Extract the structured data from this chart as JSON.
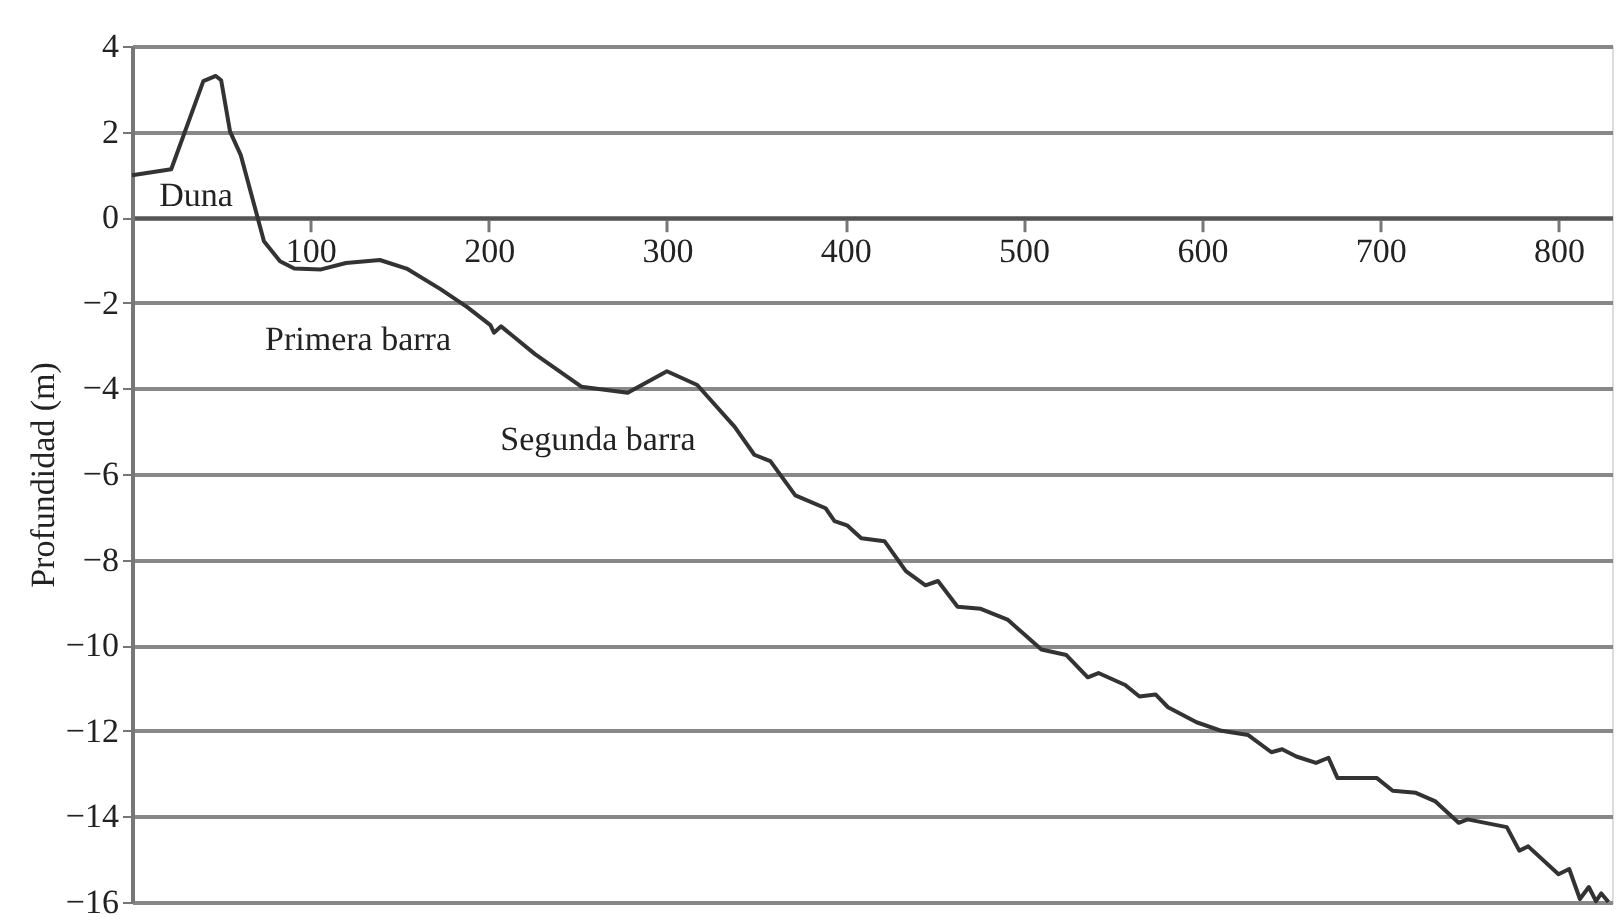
{
  "chart_data": {
    "type": "line",
    "ylabel": "Profundidad (m)",
    "x": [
      0,
      22,
      40,
      47,
      50,
      55,
      61,
      74,
      83,
      91,
      106,
      120,
      139,
      154,
      173,
      188,
      201,
      203,
      207,
      226,
      252,
      278,
      300,
      317,
      338,
      349,
      358,
      372,
      389,
      394,
      401,
      409,
      422,
      434,
      445,
      452,
      463,
      476,
      491,
      501,
      510,
      524,
      536,
      542,
      557,
      565,
      574,
      581,
      597,
      611,
      626,
      639,
      645,
      653,
      664,
      671,
      676,
      698,
      707,
      720,
      731,
      744,
      749,
      771,
      778,
      783,
      800,
      806,
      812,
      817,
      821,
      824,
      828
    ],
    "series": [
      {
        "color": "#333333",
        "values": [
          0.98,
          1.12,
          3.18,
          3.3,
          3.2,
          2.0,
          1.45,
          -0.56,
          -1.03,
          -1.2,
          -1.22,
          -1.07,
          -1.0,
          -1.2,
          -1.68,
          -2.1,
          -2.52,
          -2.7,
          -2.55,
          -3.2,
          -3.96,
          -4.1,
          -3.6,
          -3.92,
          -4.9,
          -5.55,
          -5.7,
          -6.5,
          -6.8,
          -7.1,
          -7.2,
          -7.5,
          -7.57,
          -8.27,
          -8.6,
          -8.5,
          -9.1,
          -9.15,
          -9.4,
          -9.77,
          -10.1,
          -10.23,
          -10.75,
          -10.65,
          -10.93,
          -11.2,
          -11.15,
          -11.45,
          -11.8,
          -12.0,
          -12.1,
          -12.5,
          -12.43,
          -12.6,
          -12.75,
          -12.63,
          -13.1,
          -13.1,
          -13.4,
          -13.45,
          -13.65,
          -14.15,
          -14.07,
          -14.25,
          -14.8,
          -14.7,
          -15.35,
          -15.23,
          -15.93,
          -15.65,
          -15.98,
          -15.8,
          -16.0
        ]
      }
    ],
    "xlim": [
      0,
      830
    ],
    "ylim": [
      -16,
      4
    ],
    "xticks": [
      100,
      200,
      300,
      400,
      500,
      600,
      700,
      800
    ],
    "yticks": [
      -16,
      -14,
      -12,
      -10,
      -8,
      -6,
      -4,
      -2,
      0,
      2,
      4
    ],
    "grid": "y",
    "marker": "none",
    "line_style": "solid",
    "annotations": [
      "Duna",
      "Primera barra",
      "Segunda barra"
    ]
  }
}
